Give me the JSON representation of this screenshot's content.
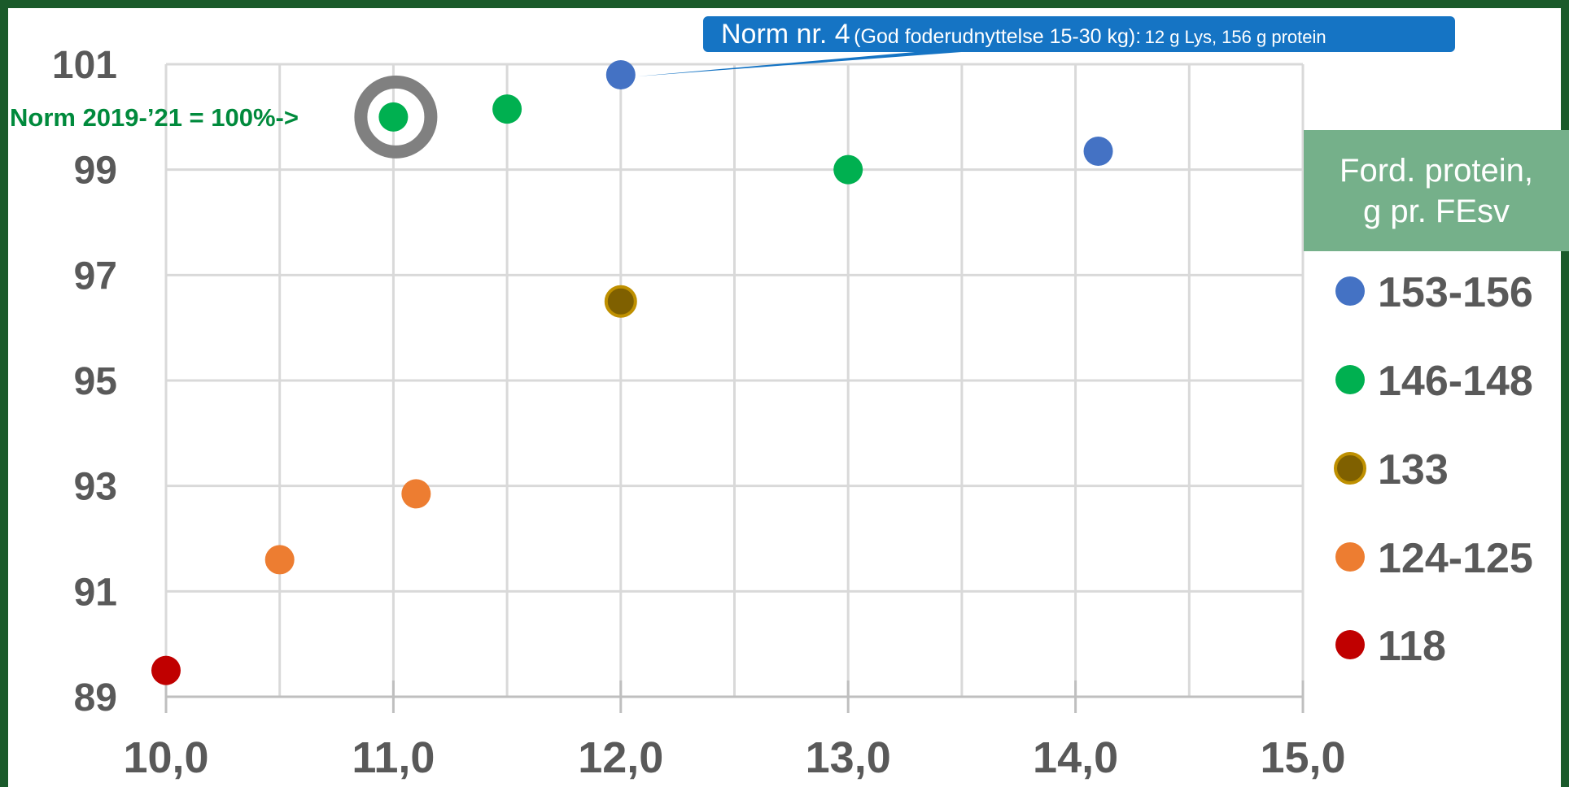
{
  "chart_data": {
    "type": "scatter",
    "xlim": [
      10.0,
      15.0
    ],
    "ylim": [
      89,
      101
    ],
    "x_ticks": [
      "10,0",
      "11,0",
      "12,0",
      "13,0",
      "14,0",
      "15,0"
    ],
    "y_ticks": [
      "89",
      "91",
      "93",
      "95",
      "97",
      "99",
      "101"
    ],
    "grid": true,
    "legend": {
      "title_line1": "Ford. protein,",
      "title_line2": "g pr. FEsv",
      "placement": "right"
    },
    "series": [
      {
        "name": "153-156",
        "color": "#4472c4",
        "points": [
          {
            "x": 12.0,
            "y": 100.8
          },
          {
            "x": 14.1,
            "y": 99.35
          }
        ]
      },
      {
        "name": "146-148",
        "color": "#00b050",
        "points": [
          {
            "x": 11.0,
            "y": 100.0
          },
          {
            "x": 11.5,
            "y": 100.15
          },
          {
            "x": 13.0,
            "y": 99.0
          }
        ]
      },
      {
        "name": "133",
        "color": "#7f6000",
        "stroke": "#bf9000",
        "points": [
          {
            "x": 12.0,
            "y": 96.5
          }
        ]
      },
      {
        "name": "124-125",
        "color": "#ed7d31",
        "points": [
          {
            "x": 10.5,
            "y": 91.6
          },
          {
            "x": 11.1,
            "y": 92.85
          }
        ]
      },
      {
        "name": "118",
        "color": "#c00000",
        "points": [
          {
            "x": 10.0,
            "y": 89.5
          }
        ]
      }
    ],
    "annotations": {
      "norm_label": "Norm 2019-’21 = 100%->",
      "norm_point": {
        "x": 11.0,
        "y": 100.0
      },
      "callout_main": "Norm nr. 4",
      "callout_mid": "(God foderudnyttelse 15-30 kg):",
      "callout_small": "12 g Lys, 156 g protein",
      "callout_point": {
        "x": 12.0,
        "y": 100.8
      }
    }
  },
  "colors": {
    "frame": "#1a5a2a",
    "grid": "#d9d9d9",
    "tick_text": "#595959",
    "legend_title_bg": "#75b08a",
    "callout_bg": "#1574c4",
    "norm_ring": "#808080"
  }
}
